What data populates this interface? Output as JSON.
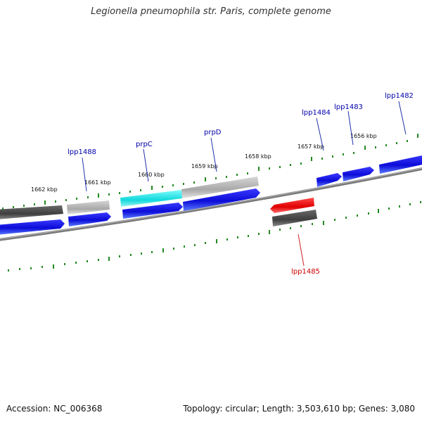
{
  "title": "Legionella pneumophila str. Paris, complete genome",
  "footer": {
    "accession": "Accession: NC_006368",
    "summary": "Topology: circular; Length: 3,503,610 bp; Genes: 3,080"
  },
  "ticks": [
    {
      "label": "1662 kbp"
    },
    {
      "label": "1661 kbp"
    },
    {
      "label": "1660 kbp"
    },
    {
      "label": "1659 kbp"
    },
    {
      "label": "1658 kbp"
    },
    {
      "label": "1657 kbp"
    },
    {
      "label": "1656 kbp"
    }
  ],
  "genes": [
    {
      "label": "lpp1488",
      "color": "#0000aa"
    },
    {
      "label": "prpC",
      "color": "#0000aa"
    },
    {
      "label": "prpD",
      "color": "#0000aa"
    },
    {
      "label": "lpp1484",
      "color": "#0000aa"
    },
    {
      "label": "lpp1483",
      "color": "#0000aa"
    },
    {
      "label": "lpp1482",
      "color": "#0000aa"
    },
    {
      "label": "lpp1485",
      "color": "#cc0000"
    }
  ],
  "colors": {
    "forward_cds": "#1414e6",
    "reverse_cds": "#ee1111",
    "gene_dark": "#4d4d4d",
    "gene_light": "#b5b5b5",
    "highlight": "#22e0e0",
    "backbone": "#7a7a7a",
    "tick": "#228822"
  }
}
